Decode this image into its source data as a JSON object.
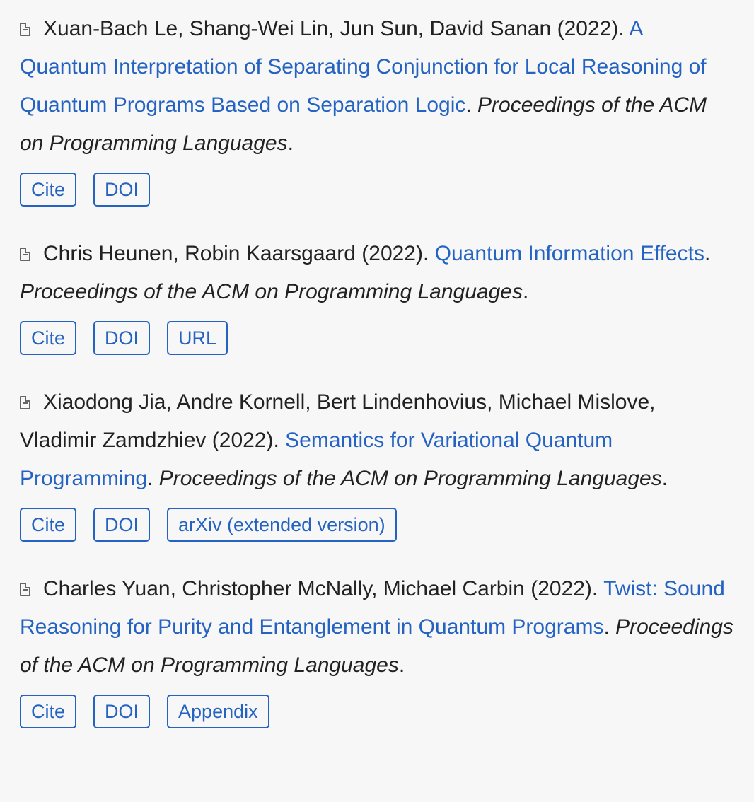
{
  "publications": [
    {
      "authors": "Xuan-Bach Le, Shang-Wei Lin, Jun Sun, David Sanan",
      "year": "(2022)",
      "title": "A Quantum Interpretation of Separating Conjunction for Local Reasoning of Quantum Programs Based on Separation Logic",
      "venue": "Proceedings of the ACM on Programming Languages",
      "links": [
        "Cite",
        "DOI"
      ]
    },
    {
      "authors": "Chris Heunen, Robin Kaarsgaard",
      "year": "(2022)",
      "title": "Quantum Information Effects",
      "venue": "Proceedings of the ACM on Programming Languages",
      "links": [
        "Cite",
        "DOI",
        "URL"
      ]
    },
    {
      "authors": "Xiaodong Jia, Andre Kornell, Bert Lindenhovius, Michael Mislove, Vladimir Zamdzhiev",
      "year": "(2022)",
      "title": "Semantics for Variational Quantum Programming",
      "venue": "Proceedings of the ACM on Programming Languages",
      "links": [
        "Cite",
        "DOI",
        "arXiv (extended version)"
      ]
    },
    {
      "authors": "Charles Yuan, Christopher McNally, Michael Carbin",
      "year": "(2022)",
      "title": "Twist: Sound Reasoning for Purity and Entanglement in Quantum Programs",
      "venue": "Proceedings of the ACM on Programming Languages",
      "links": [
        "Cite",
        "DOI",
        "Appendix"
      ]
    }
  ],
  "icons": {
    "publication": "document-icon"
  },
  "colors": {
    "link": "#2563c2",
    "text": "#222222",
    "background": "#f7f7f7"
  }
}
